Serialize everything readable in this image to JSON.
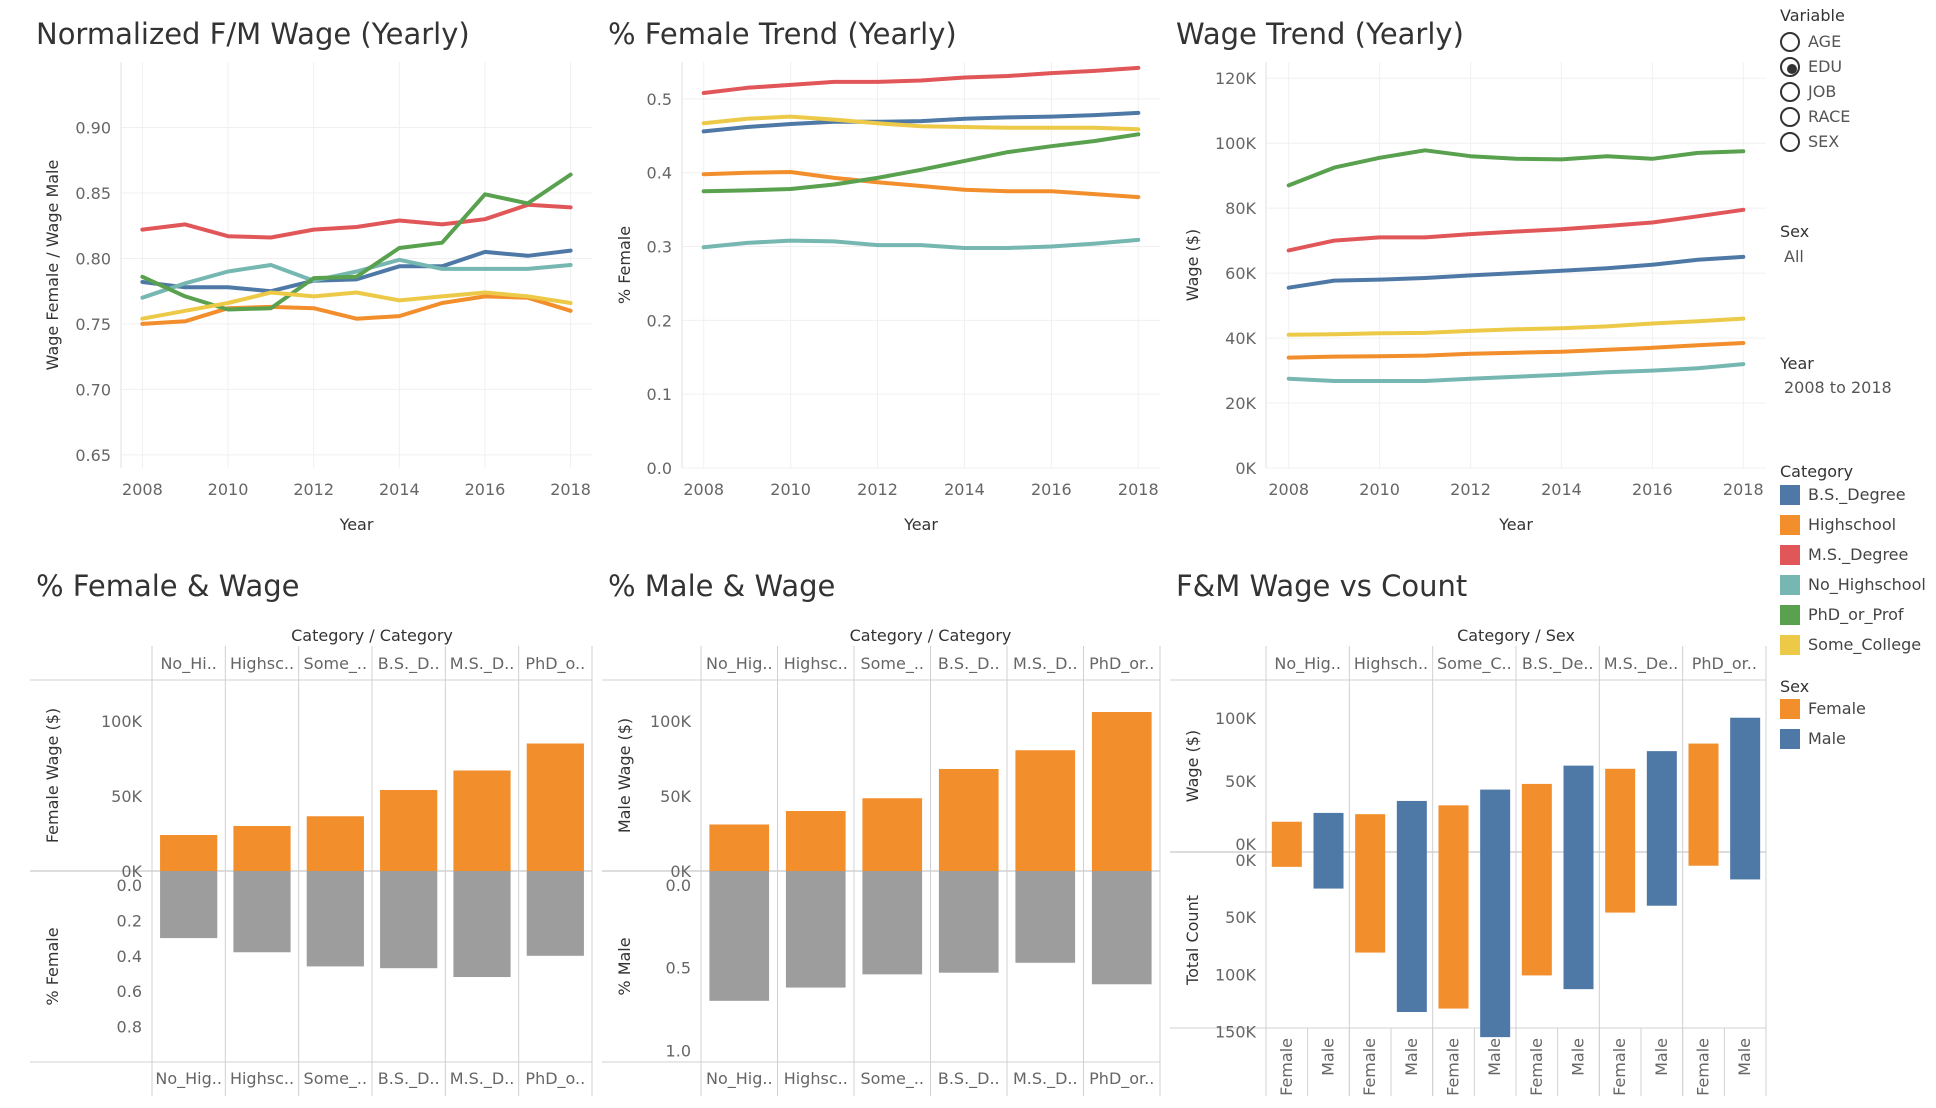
{
  "colors": {
    "B.S._Degree": "#4e79a7",
    "Highschool": "#f28e2b",
    "M.S._Degree": "#e15759",
    "No_Highschool": "#76b7b2",
    "PhD_or_Prof": "#59a14f",
    "Some_College": "#edc948",
    "Female": "#f28e2b",
    "Male": "#4e79a7",
    "bar_gray": "#9d9d9d"
  },
  "legend": {
    "variable_title": "Variable",
    "variable_options": [
      "AGE",
      "EDU",
      "JOB",
      "RACE",
      "SEX"
    ],
    "variable_selected": "EDU",
    "sex_filter_title": "Sex",
    "sex_filter_value": "All",
    "year_filter_title": "Year",
    "year_filter_value": "2008 to 2018",
    "category_title": "Category",
    "category_items": [
      "B.S._Degree",
      "Highschool",
      "M.S._Degree",
      "No_Highschool",
      "PhD_or_Prof",
      "Some_College"
    ],
    "sex_legend_title": "Sex",
    "sex_items": [
      "Female",
      "Male"
    ]
  },
  "chart_data": [
    {
      "type": "line",
      "title": "Normalized F/M Wage (Yearly)",
      "xlabel": "Year",
      "ylabel": "Wage Female / Wage Male",
      "x": [
        2008,
        2009,
        2010,
        2011,
        2012,
        2013,
        2014,
        2015,
        2016,
        2017,
        2018
      ],
      "xticks": [
        2008,
        2010,
        2012,
        2014,
        2016,
        2018
      ],
      "ylim": [
        0.64,
        0.95
      ],
      "yticks": [
        0.65,
        0.7,
        0.75,
        0.8,
        0.85,
        0.9
      ],
      "ytick_labels": [
        "0.65",
        "0.70",
        "0.75",
        "0.80",
        "0.85",
        "0.90"
      ],
      "series": [
        {
          "name": "B.S._Degree",
          "values": [
            0.782,
            0.778,
            0.778,
            0.775,
            0.783,
            0.784,
            0.794,
            0.794,
            0.805,
            0.802,
            0.806
          ]
        },
        {
          "name": "Highschool",
          "values": [
            0.75,
            0.752,
            0.762,
            0.763,
            0.762,
            0.754,
            0.756,
            0.766,
            0.771,
            0.77,
            0.76
          ]
        },
        {
          "name": "M.S._Degree",
          "values": [
            0.822,
            0.826,
            0.817,
            0.816,
            0.822,
            0.824,
            0.829,
            0.826,
            0.83,
            0.841,
            0.839
          ]
        },
        {
          "name": "No_Highschool",
          "values": [
            0.77,
            0.781,
            0.79,
            0.795,
            0.783,
            0.79,
            0.799,
            0.792,
            0.792,
            0.792,
            0.795
          ]
        },
        {
          "name": "PhD_or_Prof",
          "values": [
            0.786,
            0.771,
            0.761,
            0.762,
            0.785,
            0.786,
            0.808,
            0.812,
            0.849,
            0.842,
            0.864
          ]
        },
        {
          "name": "Some_College",
          "values": [
            0.754,
            0.76,
            0.766,
            0.774,
            0.771,
            0.774,
            0.768,
            0.771,
            0.774,
            0.771,
            0.766
          ]
        }
      ]
    },
    {
      "type": "line",
      "title": "% Female Trend (Yearly)",
      "xlabel": "Year",
      "ylabel": "% Female",
      "x": [
        2008,
        2009,
        2010,
        2011,
        2012,
        2013,
        2014,
        2015,
        2016,
        2017,
        2018
      ],
      "xticks": [
        2008,
        2010,
        2012,
        2014,
        2016,
        2018
      ],
      "ylim": [
        0.0,
        0.55
      ],
      "yticks": [
        0.0,
        0.1,
        0.2,
        0.3,
        0.4,
        0.5
      ],
      "ytick_labels": [
        "0.0",
        "0.1",
        "0.2",
        "0.3",
        "0.4",
        "0.5"
      ],
      "series": [
        {
          "name": "B.S._Degree",
          "values": [
            0.456,
            0.462,
            0.466,
            0.469,
            0.469,
            0.47,
            0.473,
            0.475,
            0.476,
            0.478,
            0.481
          ]
        },
        {
          "name": "Highschool",
          "values": [
            0.398,
            0.4,
            0.401,
            0.393,
            0.387,
            0.382,
            0.377,
            0.375,
            0.375,
            0.371,
            0.367
          ]
        },
        {
          "name": "M.S._Degree",
          "values": [
            0.508,
            0.515,
            0.519,
            0.523,
            0.523,
            0.525,
            0.529,
            0.531,
            0.535,
            0.538,
            0.542
          ]
        },
        {
          "name": "No_Highschool",
          "values": [
            0.299,
            0.305,
            0.308,
            0.307,
            0.302,
            0.302,
            0.298,
            0.298,
            0.3,
            0.304,
            0.309
          ]
        },
        {
          "name": "PhD_or_Prof",
          "values": [
            0.375,
            0.376,
            0.378,
            0.384,
            0.393,
            0.404,
            0.416,
            0.428,
            0.436,
            0.443,
            0.452
          ]
        },
        {
          "name": "Some_College",
          "values": [
            0.467,
            0.473,
            0.476,
            0.472,
            0.467,
            0.463,
            0.462,
            0.461,
            0.461,
            0.461,
            0.459
          ]
        }
      ]
    },
    {
      "type": "line",
      "title": "Wage Trend (Yearly)",
      "xlabel": "Year",
      "ylabel": "Wage ($)",
      "x": [
        2008,
        2009,
        2010,
        2011,
        2012,
        2013,
        2014,
        2015,
        2016,
        2017,
        2018
      ],
      "xticks": [
        2008,
        2010,
        2012,
        2014,
        2016,
        2018
      ],
      "ylim": [
        0,
        125000
      ],
      "yticks": [
        0,
        20000,
        40000,
        60000,
        80000,
        100000,
        120000
      ],
      "ytick_labels": [
        "0K",
        "20K",
        "40K",
        "60K",
        "80K",
        "100K",
        "120K"
      ],
      "series": [
        {
          "name": "B.S._Degree",
          "values": [
            55500,
            57700,
            58000,
            58500,
            59300,
            60000,
            60700,
            61500,
            62600,
            64100,
            65000
          ]
        },
        {
          "name": "Highschool",
          "values": [
            34000,
            34300,
            34400,
            34600,
            35200,
            35500,
            35800,
            36400,
            37000,
            37800,
            38500
          ]
        },
        {
          "name": "M.S._Degree",
          "values": [
            67000,
            70000,
            71000,
            71000,
            72000,
            72800,
            73500,
            74500,
            75600,
            77500,
            79500
          ]
        },
        {
          "name": "No_Highschool",
          "values": [
            27500,
            26800,
            26800,
            26800,
            27500,
            28100,
            28700,
            29500,
            30000,
            30700,
            32000
          ]
        },
        {
          "name": "PhD_or_Prof",
          "values": [
            87000,
            92500,
            95500,
            97800,
            96000,
            95200,
            95000,
            96000,
            95200,
            97000,
            97500
          ]
        },
        {
          "name": "Some_College",
          "values": [
            41000,
            41200,
            41500,
            41600,
            42200,
            42700,
            43000,
            43600,
            44500,
            45200,
            46000
          ]
        }
      ]
    },
    {
      "type": "bar",
      "title": "% Female & Wage",
      "header_title": "Category / Category",
      "categories": [
        "No_Hi..",
        "Highsc..",
        "Some_..",
        "B.S._D..",
        "M.S._D..",
        "PhD_o.."
      ],
      "bottom_categories": [
        "No_Hig..",
        "Highsc..",
        "Some_..",
        "B.S._D..",
        "M.S._D..",
        "PhD_o.."
      ],
      "top": {
        "ylabel": "Female Wage ($)",
        "ylim": [
          0,
          110000
        ],
        "yticks": [
          0,
          50000,
          100000
        ],
        "ytick_labels": [
          "0K",
          "50K",
          "100K"
        ],
        "values": [
          24000,
          30000,
          36500,
          54000,
          67000,
          85000
        ]
      },
      "bottom": {
        "ylabel": "% Female",
        "ylim": [
          0,
          1.0
        ],
        "yticks": [
          0.0,
          0.2,
          0.4,
          0.6,
          0.8
        ],
        "ytick_labels": [
          "0.0",
          "0.2",
          "0.4",
          "0.6",
          "0.8"
        ],
        "values": [
          0.3,
          0.38,
          0.46,
          0.47,
          0.52,
          0.4
        ]
      }
    },
    {
      "type": "bar",
      "title": "% Male & Wage",
      "header_title": "Category / Category",
      "categories": [
        "No_Hig..",
        "Highsc..",
        "Some_..",
        "B.S._D..",
        "M.S._D..",
        "PhD_or.."
      ],
      "bottom_categories": [
        "No_Hig..",
        "Highsc..",
        "Some_..",
        "B.S._D..",
        "M.S._D..",
        "PhD_or.."
      ],
      "top": {
        "ylabel": "Male Wage ($)",
        "ylim": [
          0,
          110000
        ],
        "yticks": [
          0,
          50000,
          100000
        ],
        "ytick_labels": [
          "0K",
          "50K",
          "100K"
        ],
        "values": [
          31000,
          40000,
          48500,
          68000,
          80500,
          106000
        ]
      },
      "bottom": {
        "ylabel": "% Male",
        "ylim": [
          0,
          1.1
        ],
        "yticks": [
          0.0,
          0.5,
          1.0
        ],
        "ytick_labels": [
          "0.0",
          "0.5",
          "1.0"
        ],
        "values": [
          0.7,
          0.62,
          0.54,
          0.53,
          0.47,
          0.6
        ]
      }
    },
    {
      "type": "bar",
      "title": "F&M Wage vs Count",
      "header_title": "Category / Sex",
      "categories": [
        "No_Hig..",
        "Highsch..",
        "Some_C..",
        "B.S._De..",
        "M.S._De..",
        "PhD_or.."
      ],
      "sexes": [
        "Female",
        "Male"
      ],
      "top": {
        "ylabel": "Wage ($)",
        "ylim": [
          0,
          115000
        ],
        "yticks": [
          0,
          50000,
          100000
        ],
        "ytick_labels": [
          "0K",
          "50K",
          "100K"
        ],
        "values": [
          [
            24000,
            31000
          ],
          [
            30000,
            40500
          ],
          [
            37000,
            49500
          ],
          [
            54000,
            68500
          ],
          [
            66000,
            80000
          ],
          [
            86000,
            106500
          ]
        ]
      },
      "bottom": {
        "ylabel": "Total Count",
        "ylim": [
          0,
          168000
        ],
        "yticks": [
          0,
          50000,
          100000,
          150000
        ],
        "ytick_labels": [
          "0K",
          "50K",
          "100K",
          "150K"
        ],
        "values": [
          [
            13000,
            32000
          ],
          [
            88000,
            140000
          ],
          [
            137000,
            162000
          ],
          [
            108000,
            120000
          ],
          [
            53000,
            47000
          ],
          [
            12000,
            24000
          ]
        ]
      }
    }
  ]
}
